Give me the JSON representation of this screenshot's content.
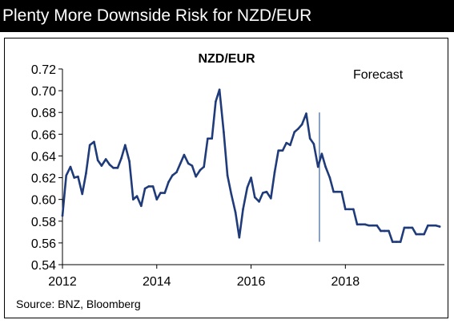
{
  "header": {
    "title": "Plenty More Downside Risk for NZD/EUR"
  },
  "chart_data": {
    "type": "line",
    "title": "NZD/EUR",
    "annotation": "Forecast",
    "source": "Source: BNZ, Bloomberg",
    "forecast_start": 2017.45,
    "xlim": [
      2012,
      2020.1
    ],
    "ylim": [
      0.54,
      0.72
    ],
    "x_ticks": [
      2012,
      2014,
      2016,
      2018
    ],
    "y_ticks": [
      0.54,
      0.56,
      0.58,
      0.6,
      0.62,
      0.64,
      0.66,
      0.68,
      0.7,
      0.72
    ],
    "y_tick_labels": [
      "0.54",
      "0.56",
      "0.58",
      "0.60",
      "0.62",
      "0.64",
      "0.66",
      "0.68",
      "0.70",
      "0.72"
    ],
    "grid": false,
    "line_color": "#1f3b7a",
    "marker_color": "#4a6fa5",
    "series": [
      {
        "x": [
          2012.0,
          2012.08,
          2012.17,
          2012.25,
          2012.33,
          2012.42,
          2012.5,
          2012.58,
          2012.67,
          2012.75,
          2012.83,
          2012.92,
          2013.0,
          2013.08,
          2013.17,
          2013.25,
          2013.33,
          2013.42,
          2013.5,
          2013.58,
          2013.67,
          2013.75,
          2013.83,
          2013.92,
          2014.0,
          2014.08,
          2014.17,
          2014.25,
          2014.33,
          2014.42,
          2014.5,
          2014.58,
          2014.67,
          2014.75,
          2014.83,
          2014.92,
          2015.0,
          2015.08,
          2015.17,
          2015.25,
          2015.33,
          2015.42,
          2015.5,
          2015.58,
          2015.67,
          2015.75,
          2015.83,
          2015.92,
          2016.0,
          2016.08,
          2016.17,
          2016.25,
          2016.33,
          2016.42,
          2016.5,
          2016.58,
          2016.67,
          2016.75,
          2016.83,
          2016.92,
          2017.0,
          2017.08,
          2017.17,
          2017.25,
          2017.33,
          2017.42,
          2017.5,
          2017.58,
          2017.67,
          2017.75,
          2017.83,
          2017.92,
          2018.0,
          2018.08,
          2018.17,
          2018.25,
          2018.33,
          2018.42,
          2018.5,
          2018.58,
          2018.67,
          2018.75,
          2018.83,
          2018.92,
          2019.0,
          2019.08,
          2019.17,
          2019.25,
          2019.33,
          2019.42,
          2019.5,
          2019.58,
          2019.67,
          2019.75,
          2019.83,
          2019.92,
          2020.0
        ],
        "y": [
          0.585,
          0.622,
          0.63,
          0.62,
          0.621,
          0.605,
          0.624,
          0.65,
          0.653,
          0.636,
          0.631,
          0.637,
          0.632,
          0.629,
          0.629,
          0.638,
          0.65,
          0.635,
          0.6,
          0.603,
          0.594,
          0.61,
          0.612,
          0.612,
          0.6,
          0.606,
          0.606,
          0.616,
          0.622,
          0.625,
          0.633,
          0.641,
          0.633,
          0.631,
          0.621,
          0.627,
          0.63,
          0.656,
          0.656,
          0.69,
          0.701,
          0.662,
          0.622,
          0.605,
          0.588,
          0.565,
          0.591,
          0.611,
          0.62,
          0.602,
          0.598,
          0.606,
          0.607,
          0.601,
          0.625,
          0.645,
          0.645,
          0.652,
          0.65,
          0.662,
          0.665,
          0.669,
          0.679,
          0.656,
          0.651,
          0.63,
          0.642,
          0.63,
          0.62,
          0.607,
          0.607,
          0.607,
          0.591,
          0.591,
          0.591,
          0.577,
          0.577,
          0.577,
          0.576,
          0.576,
          0.576,
          0.571,
          0.571,
          0.571,
          0.561,
          0.561,
          0.561,
          0.574,
          0.574,
          0.574,
          0.568,
          0.568,
          0.568,
          0.576,
          0.576,
          0.576,
          0.575
        ]
      }
    ]
  }
}
